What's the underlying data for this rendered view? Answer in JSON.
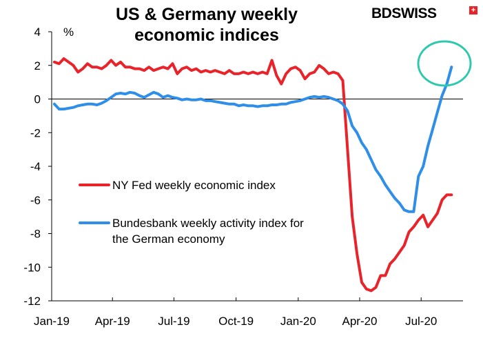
{
  "chart_data": {
    "type": "line",
    "title": "US & Germany weekly economic indices",
    "title_lines": [
      "US & Germany weekly",
      "economic indices"
    ],
    "ylabel": "%",
    "ylim": [
      -12,
      4
    ],
    "yticks": [
      4,
      2,
      0,
      -2,
      -4,
      -6,
      -8,
      -10,
      -12
    ],
    "xlim": [
      "2019-01-01",
      "2020-09-01"
    ],
    "xticks": [
      {
        "label": "Jan-19",
        "date": "2019-01-01"
      },
      {
        "label": "Apr-19",
        "date": "2019-04-01"
      },
      {
        "label": "Jul-19",
        "date": "2019-07-01"
      },
      {
        "label": "Oct-19",
        "date": "2019-10-01"
      },
      {
        "label": "Jan-20",
        "date": "2020-01-01"
      },
      {
        "label": "Apr-20",
        "date": "2020-04-01"
      },
      {
        "label": "Jul-20",
        "date": "2020-07-01"
      }
    ],
    "grid": false,
    "legend_position": "center-left",
    "series": [
      {
        "name": "NY Fed weekly economic index",
        "color": "#e8232a",
        "x": [
          "2019-01-05",
          "2019-01-12",
          "2019-01-19",
          "2019-01-26",
          "2019-02-02",
          "2019-02-09",
          "2019-02-16",
          "2019-02-23",
          "2019-03-02",
          "2019-03-09",
          "2019-03-16",
          "2019-03-23",
          "2019-03-30",
          "2019-04-06",
          "2019-04-13",
          "2019-04-20",
          "2019-04-27",
          "2019-05-04",
          "2019-05-11",
          "2019-05-18",
          "2019-05-25",
          "2019-06-01",
          "2019-06-08",
          "2019-06-15",
          "2019-06-22",
          "2019-06-29",
          "2019-07-06",
          "2019-07-13",
          "2019-07-20",
          "2019-07-27",
          "2019-08-03",
          "2019-08-10",
          "2019-08-17",
          "2019-08-24",
          "2019-08-31",
          "2019-09-07",
          "2019-09-14",
          "2019-09-21",
          "2019-09-28",
          "2019-10-05",
          "2019-10-12",
          "2019-10-19",
          "2019-10-26",
          "2019-11-02",
          "2019-11-09",
          "2019-11-16",
          "2019-11-23",
          "2019-11-30",
          "2019-12-07",
          "2019-12-14",
          "2019-12-21",
          "2019-12-28",
          "2020-01-04",
          "2020-01-11",
          "2020-01-18",
          "2020-01-25",
          "2020-02-01",
          "2020-02-08",
          "2020-02-15",
          "2020-02-22",
          "2020-02-29",
          "2020-03-07",
          "2020-03-14",
          "2020-03-21",
          "2020-03-28",
          "2020-04-04",
          "2020-04-11",
          "2020-04-18",
          "2020-04-25",
          "2020-05-02",
          "2020-05-09",
          "2020-05-16",
          "2020-05-23",
          "2020-05-30",
          "2020-06-06",
          "2020-06-13",
          "2020-06-20",
          "2020-06-27",
          "2020-07-04",
          "2020-07-11",
          "2020-07-18",
          "2020-07-25",
          "2020-08-01",
          "2020-08-08",
          "2020-08-15"
        ],
        "values": [
          2.2,
          2.1,
          2.4,
          2.2,
          2.0,
          1.6,
          1.8,
          2.1,
          1.9,
          1.9,
          1.8,
          2.0,
          2.3,
          2.0,
          2.2,
          1.9,
          1.9,
          1.8,
          1.8,
          1.7,
          1.9,
          1.7,
          1.8,
          1.9,
          1.8,
          2.1,
          1.5,
          1.8,
          1.9,
          1.7,
          1.8,
          1.6,
          1.7,
          1.6,
          1.7,
          1.6,
          1.5,
          1.7,
          1.5,
          1.5,
          1.6,
          1.5,
          1.6,
          1.5,
          1.6,
          1.5,
          2.3,
          1.4,
          0.9,
          1.5,
          1.8,
          1.9,
          1.7,
          1.2,
          1.5,
          1.6,
          2.0,
          1.8,
          1.5,
          1.6,
          1.5,
          1.1,
          -3.0,
          -7.0,
          -9.2,
          -10.9,
          -11.3,
          -11.4,
          -11.2,
          -10.5,
          -10.5,
          -9.8,
          -9.5,
          -9.1,
          -8.7,
          -7.9,
          -7.6,
          -7.2,
          -6.9,
          -7.6,
          -7.2,
          -6.8,
          -6.0,
          -5.7,
          -5.7
        ]
      },
      {
        "name": "Bundesbank weekly activity index for the German economy",
        "name_lines": [
          "Bundesbank weekly activity index for",
          "the German economy"
        ],
        "color": "#2e8ee8",
        "x": [
          "2019-01-05",
          "2019-01-12",
          "2019-01-19",
          "2019-01-26",
          "2019-02-02",
          "2019-02-09",
          "2019-02-16",
          "2019-02-23",
          "2019-03-02",
          "2019-03-09",
          "2019-03-16",
          "2019-03-23",
          "2019-03-30",
          "2019-04-06",
          "2019-04-13",
          "2019-04-20",
          "2019-04-27",
          "2019-05-04",
          "2019-05-11",
          "2019-05-18",
          "2019-05-25",
          "2019-06-01",
          "2019-06-08",
          "2019-06-15",
          "2019-06-22",
          "2019-06-29",
          "2019-07-06",
          "2019-07-13",
          "2019-07-20",
          "2019-07-27",
          "2019-08-03",
          "2019-08-10",
          "2019-08-17",
          "2019-08-24",
          "2019-08-31",
          "2019-09-07",
          "2019-09-14",
          "2019-09-21",
          "2019-09-28",
          "2019-10-05",
          "2019-10-12",
          "2019-10-19",
          "2019-10-26",
          "2019-11-02",
          "2019-11-09",
          "2019-11-16",
          "2019-11-23",
          "2019-11-30",
          "2019-12-07",
          "2019-12-14",
          "2019-12-21",
          "2019-12-28",
          "2020-01-04",
          "2020-01-11",
          "2020-01-18",
          "2020-01-25",
          "2020-02-01",
          "2020-02-08",
          "2020-02-15",
          "2020-02-22",
          "2020-02-29",
          "2020-03-07",
          "2020-03-14",
          "2020-03-21",
          "2020-03-28",
          "2020-04-04",
          "2020-04-11",
          "2020-04-18",
          "2020-04-25",
          "2020-05-02",
          "2020-05-09",
          "2020-05-16",
          "2020-05-23",
          "2020-05-30",
          "2020-06-06",
          "2020-06-13",
          "2020-06-20",
          "2020-06-27",
          "2020-07-04",
          "2020-07-11",
          "2020-07-18",
          "2020-07-25",
          "2020-08-01",
          "2020-08-08",
          "2020-08-15"
        ],
        "values": [
          -0.3,
          -0.6,
          -0.6,
          -0.55,
          -0.5,
          -0.4,
          -0.35,
          -0.3,
          -0.3,
          -0.35,
          -0.25,
          -0.1,
          0.1,
          0.3,
          0.35,
          0.3,
          0.4,
          0.35,
          0.2,
          0.1,
          0.25,
          0.4,
          0.3,
          0.1,
          0.2,
          0.1,
          0.05,
          -0.05,
          0.0,
          -0.05,
          -0.05,
          0.0,
          -0.1,
          -0.1,
          -0.15,
          -0.2,
          -0.25,
          -0.3,
          -0.3,
          -0.4,
          -0.35,
          -0.4,
          -0.4,
          -0.45,
          -0.4,
          -0.4,
          -0.35,
          -0.35,
          -0.3,
          -0.3,
          -0.2,
          -0.15,
          -0.1,
          0.0,
          0.1,
          0.15,
          0.1,
          0.15,
          0.1,
          0.0,
          -0.1,
          -0.3,
          -0.7,
          -1.6,
          -2.0,
          -2.6,
          -3.0,
          -3.6,
          -4.2,
          -4.6,
          -5.1,
          -5.5,
          -5.9,
          -6.2,
          -6.6,
          -6.7,
          -6.7,
          -4.6,
          -4.0,
          -2.8,
          -1.8,
          -0.8,
          0.2,
          0.9,
          1.9
        ]
      }
    ]
  },
  "logo_text": "BDSWISS"
}
